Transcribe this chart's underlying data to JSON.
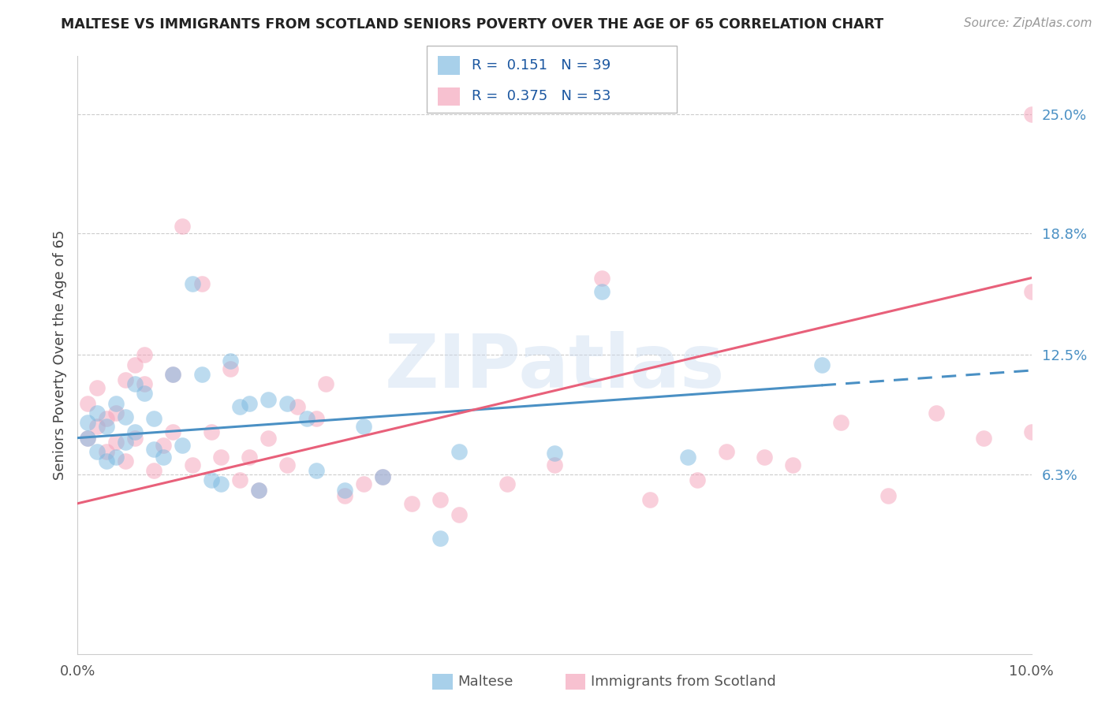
{
  "title": "MALTESE VS IMMIGRANTS FROM SCOTLAND SENIORS POVERTY OVER THE AGE OF 65 CORRELATION CHART",
  "source": "Source: ZipAtlas.com",
  "ylabel": "Seniors Poverty Over the Age of 65",
  "xlim": [
    0.0,
    0.1
  ],
  "ylim": [
    -0.03,
    0.28
  ],
  "yticks_right": [
    0.063,
    0.125,
    0.188,
    0.25
  ],
  "ytick_right_labels": [
    "6.3%",
    "12.5%",
    "18.8%",
    "25.0%"
  ],
  "maltese_color": "#7ab8e0",
  "scotland_color": "#f4a0b8",
  "maltese_line_color": "#4a90c4",
  "scotland_line_color": "#e8607a",
  "watermark": "ZIPatlas",
  "watermark_color": "#c5d8ee",
  "blue_x": [
    0.001,
    0.001,
    0.002,
    0.002,
    0.003,
    0.003,
    0.004,
    0.004,
    0.005,
    0.005,
    0.006,
    0.006,
    0.007,
    0.008,
    0.008,
    0.009,
    0.01,
    0.011,
    0.012,
    0.013,
    0.014,
    0.015,
    0.016,
    0.017,
    0.018,
    0.019,
    0.02,
    0.022,
    0.024,
    0.025,
    0.028,
    0.03,
    0.032,
    0.038,
    0.04,
    0.05,
    0.055,
    0.064,
    0.078
  ],
  "blue_y": [
    0.09,
    0.082,
    0.095,
    0.075,
    0.088,
    0.07,
    0.1,
    0.072,
    0.08,
    0.093,
    0.085,
    0.11,
    0.105,
    0.092,
    0.076,
    0.072,
    0.115,
    0.078,
    0.162,
    0.115,
    0.06,
    0.058,
    0.122,
    0.098,
    0.1,
    0.055,
    0.102,
    0.1,
    0.092,
    0.065,
    0.055,
    0.088,
    0.062,
    0.03,
    0.075,
    0.074,
    0.158,
    0.072,
    0.12
  ],
  "pink_x": [
    0.001,
    0.001,
    0.002,
    0.002,
    0.003,
    0.003,
    0.004,
    0.004,
    0.005,
    0.005,
    0.006,
    0.006,
    0.007,
    0.007,
    0.008,
    0.009,
    0.01,
    0.01,
    0.011,
    0.012,
    0.013,
    0.014,
    0.015,
    0.016,
    0.017,
    0.018,
    0.019,
    0.02,
    0.022,
    0.023,
    0.025,
    0.026,
    0.028,
    0.03,
    0.032,
    0.035,
    0.038,
    0.04,
    0.045,
    0.05,
    0.055,
    0.06,
    0.065,
    0.068,
    0.072,
    0.075,
    0.08,
    0.085,
    0.09,
    0.095,
    0.1,
    0.1,
    0.1
  ],
  "pink_y": [
    0.082,
    0.1,
    0.088,
    0.108,
    0.075,
    0.092,
    0.095,
    0.08,
    0.112,
    0.07,
    0.12,
    0.082,
    0.11,
    0.125,
    0.065,
    0.078,
    0.085,
    0.115,
    0.192,
    0.068,
    0.162,
    0.085,
    0.072,
    0.118,
    0.06,
    0.072,
    0.055,
    0.082,
    0.068,
    0.098,
    0.092,
    0.11,
    0.052,
    0.058,
    0.062,
    0.048,
    0.05,
    0.042,
    0.058,
    0.068,
    0.165,
    0.05,
    0.06,
    0.075,
    0.072,
    0.068,
    0.09,
    0.052,
    0.095,
    0.082,
    0.25,
    0.158,
    0.085
  ],
  "blue_line_x0": 0.0,
  "blue_line_y0": 0.082,
  "blue_line_x1": 0.1,
  "blue_line_y1": 0.117,
  "blue_line_solid_end": 0.078,
  "pink_line_x0": 0.0,
  "pink_line_y0": 0.048,
  "pink_line_x1": 0.1,
  "pink_line_y1": 0.165
}
